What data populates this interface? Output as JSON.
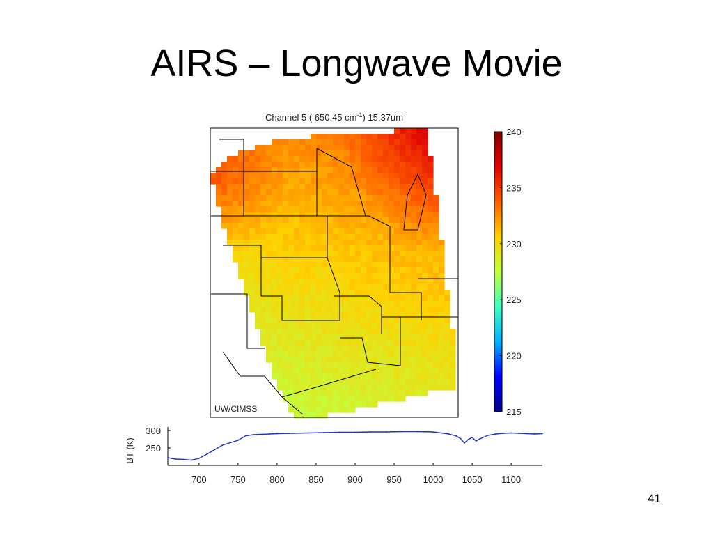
{
  "slide": {
    "title": "AIRS – Longwave Movie",
    "page_number": "41"
  },
  "chart_data": [
    {
      "type": "heatmap",
      "title_prefix": "Channel 5 ( 650.45 cm",
      "title_superscript": "-1",
      "title_suffix": ")   15.37um",
      "watermark": "UW/CIMSS",
      "colorbar": {
        "ticks": [
          240,
          235,
          230,
          225,
          220,
          215
        ],
        "range": [
          215,
          240
        ],
        "colormap": [
          "#00008f",
          "#0000ff",
          "#00b0ff",
          "#40ffc0",
          "#c0ff40",
          "#ffd000",
          "#ff6000",
          "#e00000",
          "#800000"
        ]
      },
      "grid": false
    },
    {
      "type": "line",
      "ylabel": "BT (K)",
      "xlabel": "",
      "xlim": [
        660,
        1140
      ],
      "ylim": [
        200,
        310
      ],
      "x_ticks": [
        700,
        750,
        800,
        850,
        900,
        950,
        1000,
        1050,
        1100
      ],
      "y_ticks": [
        250,
        300
      ],
      "series": [
        {
          "color": "#1f2fd0",
          "x": [
            660,
            670,
            680,
            690,
            700,
            710,
            720,
            730,
            740,
            750,
            760,
            770,
            780,
            790,
            800,
            820,
            840,
            860,
            880,
            900,
            920,
            940,
            960,
            980,
            1000,
            1020,
            1030,
            1035,
            1040,
            1045,
            1050,
            1055,
            1060,
            1070,
            1080,
            1090,
            1100,
            1110,
            1120,
            1130,
            1140
          ],
          "y": [
            222,
            218,
            217,
            215,
            220,
            232,
            245,
            258,
            265,
            272,
            285,
            288,
            289,
            290,
            291,
            292,
            293,
            294,
            295,
            295,
            296,
            296,
            297,
            297,
            296,
            290,
            284,
            277,
            264,
            274,
            280,
            270,
            276,
            286,
            290,
            292,
            293,
            292,
            291,
            290,
            291
          ]
        }
      ],
      "grid": false
    }
  ]
}
